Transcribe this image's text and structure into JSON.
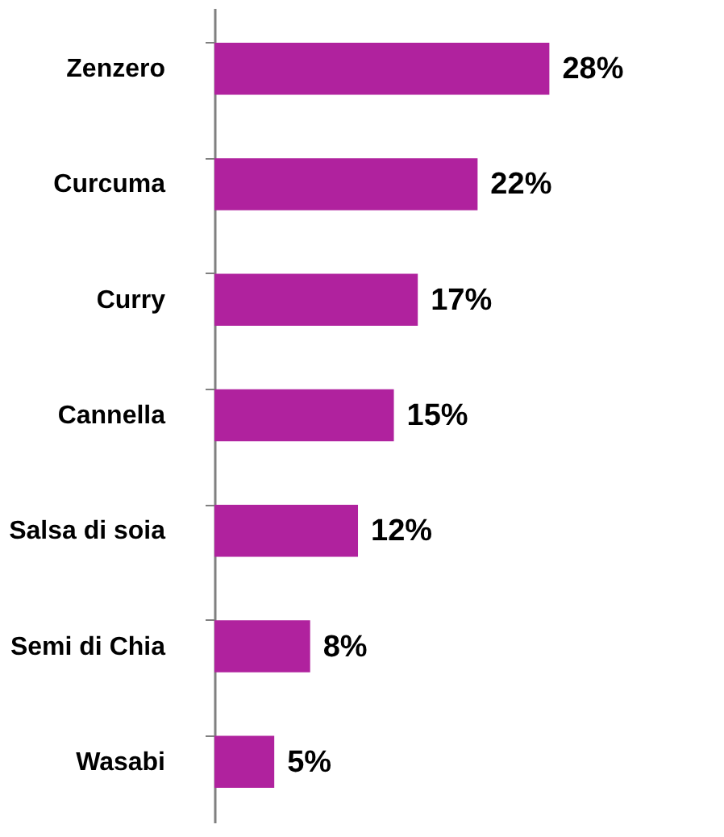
{
  "chart_data": {
    "type": "bar",
    "orientation": "horizontal",
    "categories": [
      "Zenzero",
      "Curcuma",
      "Curry",
      "Cannella",
      "Salsa di soia",
      "Semi di Chia",
      "Wasabi"
    ],
    "values": [
      28,
      22,
      17,
      15,
      12,
      8,
      5
    ],
    "value_labels": [
      "28%",
      "22%",
      "17%",
      "15%",
      "12%",
      "8%",
      "5%"
    ],
    "color": "#b0229e",
    "grid": false
  }
}
